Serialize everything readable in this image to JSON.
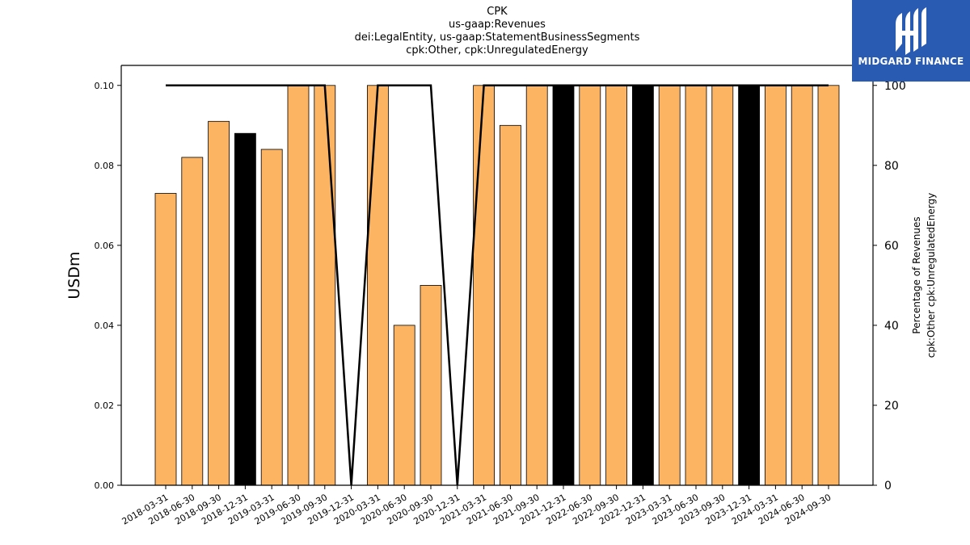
{
  "chart_data": {
    "type": "bar",
    "title_lines": [
      "CPK",
      "us-gaap:Revenues",
      "dei:LegalEntity, us-gaap:StatementBusinessSegments",
      "cpk:Other, cpk:UnregulatedEnergy"
    ],
    "ylabel": "USDm",
    "y2label_lines": [
      "Percentage of Revenues",
      "cpk:Other cpk:UnregulatedEnergy"
    ],
    "ylim": [
      0,
      0.105
    ],
    "y2lim": [
      0,
      105
    ],
    "yticks": [
      "0.00",
      "0.02",
      "0.04",
      "0.06",
      "0.08",
      "0.10"
    ],
    "y2ticks": [
      "0",
      "20",
      "40",
      "60",
      "80",
      "100"
    ],
    "categories": [
      "2018-03-31",
      "2018-06-30",
      "2018-09-30",
      "2018-12-31",
      "2019-03-31",
      "2019-06-30",
      "2019-09-30",
      "2019-12-31",
      "2020-03-31",
      "2020-06-30",
      "2020-09-30",
      "2020-12-31",
      "2021-03-31",
      "2021-06-30",
      "2021-09-30",
      "2021-12-31",
      "2022-06-30",
      "2022-09-30",
      "2022-12-31",
      "2023-03-31",
      "2023-06-30",
      "2023-09-30",
      "2023-12-31",
      "2024-03-31",
      "2024-06-30",
      "2024-09-30"
    ],
    "values": [
      0.073,
      0.082,
      0.091,
      0.088,
      0.084,
      0.1,
      0.1,
      null,
      0.1,
      0.04,
      0.05,
      null,
      0.1,
      0.09,
      0.1,
      0.1,
      0.1,
      0.1,
      0.1,
      0.1,
      0.1,
      0.1,
      0.1,
      0.1,
      0.1,
      0.1
    ],
    "highlight": [
      false,
      false,
      false,
      true,
      false,
      false,
      false,
      false,
      false,
      false,
      false,
      false,
      false,
      false,
      false,
      true,
      false,
      false,
      true,
      false,
      false,
      false,
      true,
      false,
      false,
      false
    ],
    "percentage": [
      100,
      100,
      100,
      100,
      100,
      100,
      100,
      0,
      100,
      100,
      100,
      0,
      100,
      100,
      100,
      100,
      100,
      100,
      100,
      100,
      100,
      100,
      100,
      100,
      100,
      100
    ],
    "colors": {
      "bar": "#fdb462",
      "highlight": "#000000",
      "line": "#000000"
    }
  },
  "logo": {
    "text": "MIDGARD FINANCE",
    "bg": "#2a5bb3"
  }
}
